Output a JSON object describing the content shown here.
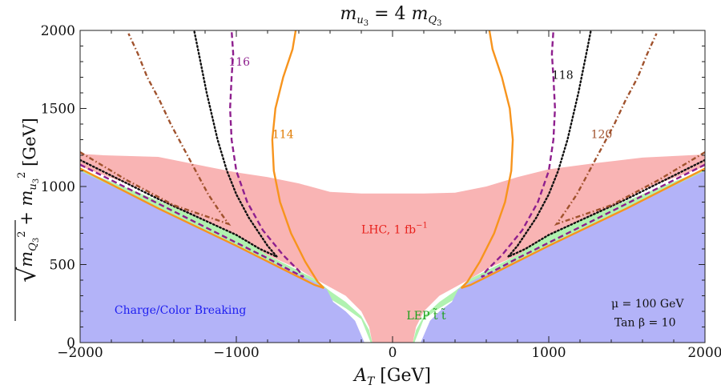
{
  "chart_data": {
    "type": "contour",
    "title": "m_u3 = 4 m_Q3",
    "xlabel": "A_T [GeV]",
    "ylabel": "sqrt(m_Q3^2 + m_u3^2) [GeV]",
    "xlim": [
      -2000,
      2000
    ],
    "ylim": [
      0,
      2000
    ],
    "xticks": [
      -2000,
      -1000,
      0,
      1000,
      2000
    ],
    "yticks": [
      0,
      500,
      1000,
      1500,
      2000
    ],
    "xtick_labels": [
      "−2000",
      "−1000",
      "0",
      "1000",
      "2000"
    ],
    "ytick_labels": [
      "0",
      "500",
      "1000",
      "1500",
      "2000"
    ],
    "regions": [
      {
        "name": "LHC, 1 fb",
        "label": "LHC, 1 fb",
        "label_sup": "−1",
        "color": "#f9b4b4",
        "label_color": "#e8211c",
        "label_pos": [
          -200,
          700
        ],
        "polygon": [
          [
            -2000,
            1210
          ],
          [
            -1850,
            1200
          ],
          [
            -1500,
            1190
          ],
          [
            -1200,
            1130
          ],
          [
            -1000,
            1090
          ],
          [
            -800,
            1060
          ],
          [
            -600,
            1020
          ],
          [
            -400,
            965
          ],
          [
            -200,
            955
          ],
          [
            0,
            955
          ],
          [
            200,
            955
          ],
          [
            400,
            960
          ],
          [
            600,
            1000
          ],
          [
            800,
            1060
          ],
          [
            1000,
            1110
          ],
          [
            1300,
            1150
          ],
          [
            1600,
            1185
          ],
          [
            2000,
            1205
          ],
          [
            2000,
            1130
          ],
          [
            1600,
            980
          ],
          [
            1300,
            800
          ],
          [
            1000,
            650
          ],
          [
            800,
            560
          ],
          [
            600,
            470
          ],
          [
            500,
            410
          ],
          [
            300,
            300
          ],
          [
            200,
            200
          ],
          [
            150,
            100
          ],
          [
            130,
            0
          ],
          [
            -130,
            0
          ],
          [
            -150,
            100
          ],
          [
            -200,
            200
          ],
          [
            -300,
            300
          ],
          [
            -500,
            410
          ],
          [
            -600,
            470
          ],
          [
            -800,
            560
          ],
          [
            -1000,
            650
          ],
          [
            -1300,
            800
          ],
          [
            -1600,
            980
          ],
          [
            -2000,
            1130
          ]
        ]
      },
      {
        "name": "LEP stop-stop",
        "label": "LEP  t̃ t̃",
        "color": "#b0f2b0",
        "label_color": "#1aa01a",
        "label_pos": [
          90,
          150
        ],
        "polygon": [
          [
            -2000,
            1110
          ],
          [
            -1500,
            910
          ],
          [
            -1000,
            690
          ],
          [
            -800,
            560
          ],
          [
            -600,
            460
          ],
          [
            -500,
            410
          ],
          [
            -400,
            330
          ],
          [
            -300,
            260
          ],
          [
            -200,
            170
          ],
          [
            -150,
            80
          ],
          [
            -130,
            0
          ],
          [
            130,
            0
          ],
          [
            150,
            80
          ],
          [
            200,
            170
          ],
          [
            300,
            260
          ],
          [
            400,
            330
          ],
          [
            500,
            410
          ],
          [
            600,
            460
          ],
          [
            800,
            560
          ],
          [
            1000,
            690
          ],
          [
            1500,
            910
          ],
          [
            2000,
            1110
          ],
          [
            2000,
            1040
          ],
          [
            1500,
            820
          ],
          [
            1000,
            600
          ],
          [
            700,
            480
          ],
          [
            500,
            360
          ],
          [
            400,
            280
          ],
          [
            300,
            220
          ],
          [
            200,
            150
          ],
          [
            140,
            0
          ],
          [
            -140,
            0
          ],
          [
            -200,
            150
          ],
          [
            -300,
            220
          ],
          [
            -400,
            280
          ],
          [
            -500,
            360
          ],
          [
            -700,
            480
          ],
          [
            -1000,
            600
          ],
          [
            -1500,
            820
          ],
          [
            -2000,
            1040
          ]
        ]
      },
      {
        "name": "Charge/Color Breaking",
        "label": "Charge/Color Breaking",
        "color": "#b3b3f8",
        "label_color": "#1d1df0",
        "label_pos": [
          -1780,
          185
        ],
        "polygon": [
          [
            -2000,
            0
          ],
          [
            -2000,
            1100
          ],
          [
            -1500,
            860
          ],
          [
            -1000,
            620
          ],
          [
            -700,
            480
          ],
          [
            -500,
            390
          ],
          [
            -420,
            340
          ],
          [
            -380,
            260
          ],
          [
            -300,
            200
          ],
          [
            -240,
            140
          ],
          [
            -180,
            0
          ],
          [
            180,
            0
          ],
          [
            240,
            140
          ],
          [
            300,
            200
          ],
          [
            380,
            260
          ],
          [
            420,
            340
          ],
          [
            500,
            390
          ],
          [
            700,
            480
          ],
          [
            1000,
            620
          ],
          [
            1500,
            860
          ],
          [
            2000,
            1100
          ],
          [
            2000,
            0
          ]
        ]
      }
    ],
    "contours": [
      {
        "name": "114",
        "label": "114",
        "style": "solid",
        "color": "#f7941d",
        "label_color": "#e07b00",
        "label_pos": [
          -770,
          1310
        ],
        "segments": [
          [
            [
              -2000,
              1115
            ],
            [
              -1500,
              860
            ],
            [
              -1000,
              620
            ],
            [
              -700,
              470
            ],
            [
              -500,
              370
            ],
            [
              -440,
              350
            ],
            [
              -480,
              390
            ],
            [
              -560,
              520
            ],
            [
              -650,
              700
            ],
            [
              -720,
              900
            ],
            [
              -760,
              1100
            ],
            [
              -770,
              1300
            ],
            [
              -750,
              1500
            ],
            [
              -700,
              1700
            ],
            [
              -640,
              1880
            ],
            [
              -620,
              2000
            ]
          ],
          [
            [
              2000,
              1115
            ],
            [
              1500,
              860
            ],
            [
              1000,
              620
            ],
            [
              700,
              470
            ],
            [
              500,
              370
            ],
            [
              440,
              350
            ],
            [
              480,
              390
            ],
            [
              560,
              520
            ],
            [
              650,
              700
            ],
            [
              720,
              900
            ],
            [
              760,
              1100
            ],
            [
              770,
              1300
            ],
            [
              750,
              1500
            ],
            [
              700,
              1700
            ],
            [
              640,
              1880
            ],
            [
              620,
              2000
            ]
          ]
        ]
      },
      {
        "name": "116",
        "label": "116",
        "style": "dashed",
        "color": "#8e1f8e",
        "label_color": "#8e1f8e",
        "label_pos": [
          -1050,
          1775
        ],
        "segments": [
          [
            [
              -2000,
              1140
            ],
            [
              -1500,
              890
            ],
            [
              -1000,
              640
            ],
            [
              -800,
              540
            ],
            [
              -650,
              460
            ],
            [
              -570,
              420
            ],
            [
              -600,
              460
            ],
            [
              -700,
              560
            ],
            [
              -830,
              720
            ],
            [
              -930,
              900
            ],
            [
              -1000,
              1100
            ],
            [
              -1030,
              1300
            ],
            [
              -1040,
              1500
            ],
            [
              -1030,
              1700
            ],
            [
              -1020,
              1850
            ],
            [
              -1030,
              2000
            ]
          ],
          [
            [
              2000,
              1140
            ],
            [
              1500,
              890
            ],
            [
              1000,
              640
            ],
            [
              800,
              540
            ],
            [
              650,
              460
            ],
            [
              570,
              420
            ],
            [
              600,
              460
            ],
            [
              700,
              560
            ],
            [
              830,
              720
            ],
            [
              930,
              900
            ],
            [
              1000,
              1100
            ],
            [
              1030,
              1300
            ],
            [
              1040,
              1500
            ],
            [
              1030,
              1700
            ],
            [
              1020,
              1850
            ],
            [
              1030,
              2000
            ]
          ]
        ]
      },
      {
        "name": "118",
        "label": "118",
        "style": "dotted",
        "color": "#111111",
        "label_color": "#111111",
        "label_pos": [
          1020,
          1690
        ],
        "segments": [
          [
            [
              -2000,
              1170
            ],
            [
              -1500,
              920
            ],
            [
              -1000,
              690
            ],
            [
              -850,
              600
            ],
            [
              -740,
              550
            ],
            [
              -800,
              620
            ],
            [
              -920,
              800
            ],
            [
              -1000,
              950
            ],
            [
              -1060,
              1100
            ],
            [
              -1120,
              1300
            ],
            [
              -1190,
              1600
            ],
            [
              -1250,
              1900
            ],
            [
              -1270,
              2000
            ]
          ],
          [
            [
              2000,
              1170
            ],
            [
              1500,
              920
            ],
            [
              1000,
              690
            ],
            [
              850,
              600
            ],
            [
              740,
              550
            ],
            [
              800,
              620
            ],
            [
              920,
              800
            ],
            [
              1000,
              950
            ],
            [
              1060,
              1100
            ],
            [
              1120,
              1300
            ],
            [
              1190,
              1600
            ],
            [
              1250,
              1900
            ],
            [
              1270,
              2000
            ]
          ]
        ]
      },
      {
        "name": "120",
        "label": "120",
        "style": "dashdot",
        "color": "#a0522d",
        "label_color": "#a0522d",
        "label_pos": [
          1270,
          1310
        ],
        "segments": [
          [
            [
              -2000,
              1220
            ],
            [
              -1700,
              1040
            ],
            [
              -1400,
              880
            ],
            [
              -1050,
              760
            ],
            [
              -1100,
              830
            ],
            [
              -1180,
              950
            ],
            [
              -1260,
              1100
            ],
            [
              -1340,
              1250
            ],
            [
              -1420,
              1400
            ],
            [
              -1490,
              1550
            ],
            [
              -1570,
              1700
            ],
            [
              -1630,
              1850
            ],
            [
              -1690,
              1980
            ]
          ],
          [
            [
              2000,
              1220
            ],
            [
              1700,
              1040
            ],
            [
              1400,
              880
            ],
            [
              1050,
              760
            ],
            [
              1100,
              830
            ],
            [
              1180,
              950
            ],
            [
              1260,
              1100
            ],
            [
              1340,
              1250
            ],
            [
              1420,
              1400
            ],
            [
              1490,
              1550
            ],
            [
              1570,
              1700
            ],
            [
              1630,
              1850
            ],
            [
              1690,
              1980
            ]
          ]
        ]
      }
    ],
    "annotations": [
      {
        "name": "mu-annotation",
        "text": "μ = 100 GeV",
        "pos": [
          1400,
          225
        ]
      },
      {
        "name": "tanbeta-annotation",
        "text": "Tan β = 10",
        "pos": [
          1420,
          105
        ]
      }
    ]
  }
}
